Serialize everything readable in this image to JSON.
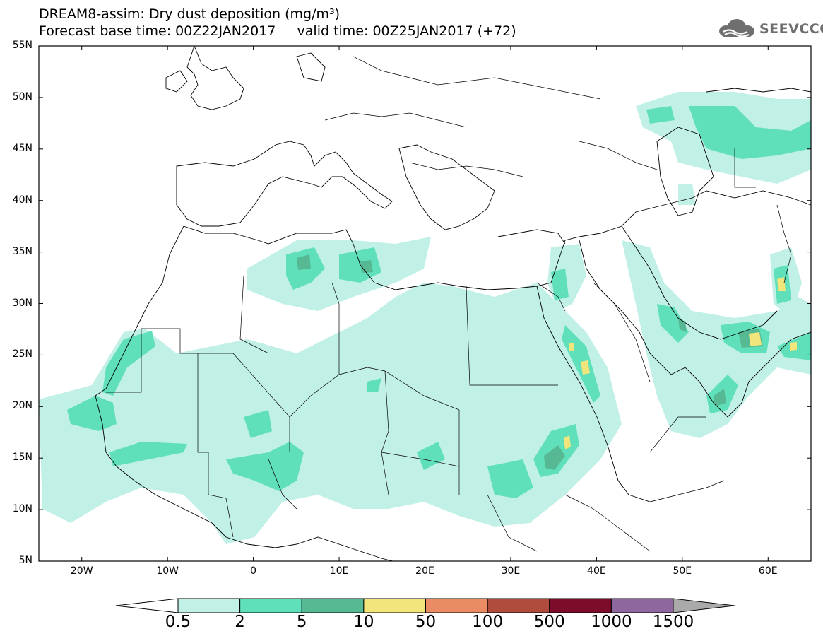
{
  "header": {
    "title_line1": "DREAM8-assim: Dry dust deposition (mg/m³)",
    "title_line2": "Forecast base time: 00Z22JAN2017     valid time: 00Z25JAN2017 (+72)",
    "logo_text": "SEEVCCC"
  },
  "map": {
    "lon_range": [
      -25,
      65
    ],
    "lat_range": [
      5,
      55
    ],
    "lat_ticks": [
      {
        "value": 55,
        "label": "55N"
      },
      {
        "value": 50,
        "label": "50N"
      },
      {
        "value": 45,
        "label": "45N"
      },
      {
        "value": 40,
        "label": "40N"
      },
      {
        "value": 35,
        "label": "35N"
      },
      {
        "value": 30,
        "label": "30N"
      },
      {
        "value": 25,
        "label": "25N"
      },
      {
        "value": 20,
        "label": "20N"
      },
      {
        "value": 15,
        "label": "15N"
      },
      {
        "value": 10,
        "label": "10N"
      },
      {
        "value": 5,
        "label": "5N"
      }
    ],
    "lon_ticks": [
      {
        "value": -20,
        "label": "20W"
      },
      {
        "value": -10,
        "label": "10W"
      },
      {
        "value": 0,
        "label": "0"
      },
      {
        "value": 10,
        "label": "10E"
      },
      {
        "value": 20,
        "label": "20E"
      },
      {
        "value": 30,
        "label": "30E"
      },
      {
        "value": 40,
        "label": "40E"
      },
      {
        "value": 50,
        "label": "50E"
      },
      {
        "value": 60,
        "label": "60E"
      }
    ]
  },
  "colorbar": {
    "colors": [
      "#c0f0e6",
      "#5fe0bb",
      "#56b994",
      "#f2e57c",
      "#ea8c63",
      "#b04c3e",
      "#7c0c2a",
      "#8d679e"
    ],
    "under_color": "#ffffff",
    "over_color": "#aaaaaa",
    "labels": [
      "0.5",
      "2",
      "5",
      "10",
      "50",
      "100",
      "500",
      "1000",
      "1500"
    ]
  }
}
